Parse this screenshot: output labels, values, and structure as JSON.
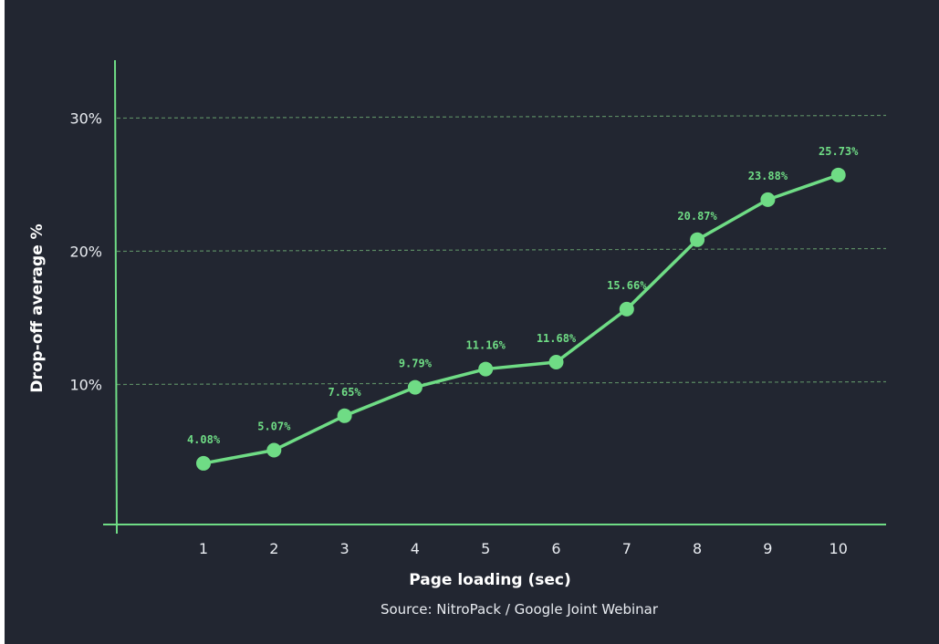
{
  "colors": {
    "background": "#222631",
    "accent": "#6fdc85",
    "grid": "#5b8a63",
    "text": "#e9ecf1"
  },
  "chart_data": {
    "type": "line",
    "x": [
      1,
      2,
      3,
      4,
      5,
      6,
      7,
      8,
      9,
      10
    ],
    "series": [
      {
        "values": [
          4.08,
          5.07,
          7.65,
          9.79,
          11.16,
          11.68,
          15.66,
          20.87,
          23.88,
          25.73
        ],
        "labels": [
          "4.08%",
          "5.07%",
          "7.65%",
          "9.79%",
          "11.16%",
          "11.68%",
          "15.66%",
          "20.87%",
          "23.88%",
          "25.73%"
        ]
      }
    ],
    "xlabel": "Page loading (sec)",
    "ylabel": "Drop-off average %",
    "yticks": [
      10,
      20,
      30
    ],
    "ytick_labels": [
      "10%",
      "20%",
      "30%"
    ],
    "xtick_labels": [
      "1",
      "2",
      "3",
      "4",
      "5",
      "6",
      "7",
      "8",
      "9",
      "10"
    ],
    "ylim": [
      0,
      30
    ],
    "grid": "horizontal dashed",
    "source": "Source: NitroPack / Google Joint Webinar"
  }
}
